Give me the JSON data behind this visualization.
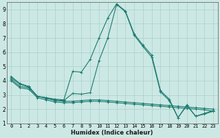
{
  "xlabel": "Humidex (Indice chaleur)",
  "ylabel": "",
  "xlim": [
    -0.5,
    23.5
  ],
  "ylim": [
    1,
    9.5
  ],
  "yticks": [
    1,
    2,
    3,
    4,
    5,
    6,
    7,
    8,
    9
  ],
  "xticks": [
    0,
    1,
    2,
    3,
    4,
    5,
    6,
    7,
    8,
    9,
    10,
    11,
    12,
    13,
    14,
    15,
    16,
    17,
    18,
    19,
    20,
    21,
    22,
    23
  ],
  "background_color": "#cce8e4",
  "grid_color": "#aacfcc",
  "line_color": "#1a7a6e",
  "lines": [
    {
      "x": [
        0,
        1,
        2,
        3,
        4,
        5,
        6,
        7,
        8,
        9,
        10,
        11,
        12,
        13,
        14,
        15,
        16,
        17,
        18,
        19,
        20,
        21,
        22,
        23
      ],
      "y": [
        4.3,
        3.8,
        3.6,
        2.9,
        2.8,
        2.7,
        2.65,
        4.65,
        4.6,
        5.5,
        7.0,
        8.4,
        9.4,
        8.9,
        7.3,
        6.5,
        5.8,
        3.3,
        2.7,
        1.4,
        2.3,
        1.5,
        1.7,
        1.9
      ]
    },
    {
      "x": [
        0,
        1,
        2,
        3,
        4,
        5,
        6,
        7,
        8,
        9,
        10,
        11,
        12,
        13,
        14,
        15,
        16,
        17,
        18,
        19,
        20,
        21,
        22,
        23
      ],
      "y": [
        4.2,
        3.75,
        3.55,
        2.9,
        2.8,
        2.65,
        2.6,
        3.1,
        3.05,
        3.15,
        5.4,
        7.0,
        9.35,
        8.85,
        7.2,
        6.4,
        5.65,
        3.2,
        2.6,
        1.4,
        2.25,
        1.5,
        1.65,
        1.85
      ]
    },
    {
      "x": [
        0,
        1,
        2,
        3,
        4,
        5,
        6,
        7,
        8,
        9,
        10,
        11,
        12,
        13,
        14,
        15,
        16,
        17,
        18,
        19,
        20,
        21,
        22,
        23
      ],
      "y": [
        4.1,
        3.6,
        3.5,
        2.9,
        2.75,
        2.6,
        2.55,
        2.55,
        2.6,
        2.65,
        2.65,
        2.6,
        2.55,
        2.5,
        2.45,
        2.4,
        2.35,
        2.3,
        2.25,
        2.2,
        2.15,
        2.1,
        2.05,
        2.0
      ]
    },
    {
      "x": [
        0,
        1,
        2,
        3,
        4,
        5,
        6,
        7,
        8,
        9,
        10,
        11,
        12,
        13,
        14,
        15,
        16,
        17,
        18,
        19,
        20,
        21,
        22,
        23
      ],
      "y": [
        4.0,
        3.5,
        3.4,
        2.8,
        2.65,
        2.5,
        2.45,
        2.45,
        2.5,
        2.55,
        2.55,
        2.5,
        2.45,
        2.4,
        2.35,
        2.3,
        2.25,
        2.2,
        2.15,
        2.1,
        2.05,
        2.0,
        1.95,
        1.85
      ]
    }
  ],
  "marker": "+",
  "markersize": 3.5,
  "linewidth": 0.8,
  "xlabel_fontsize": 6.0,
  "tick_fontsize": 5.0
}
